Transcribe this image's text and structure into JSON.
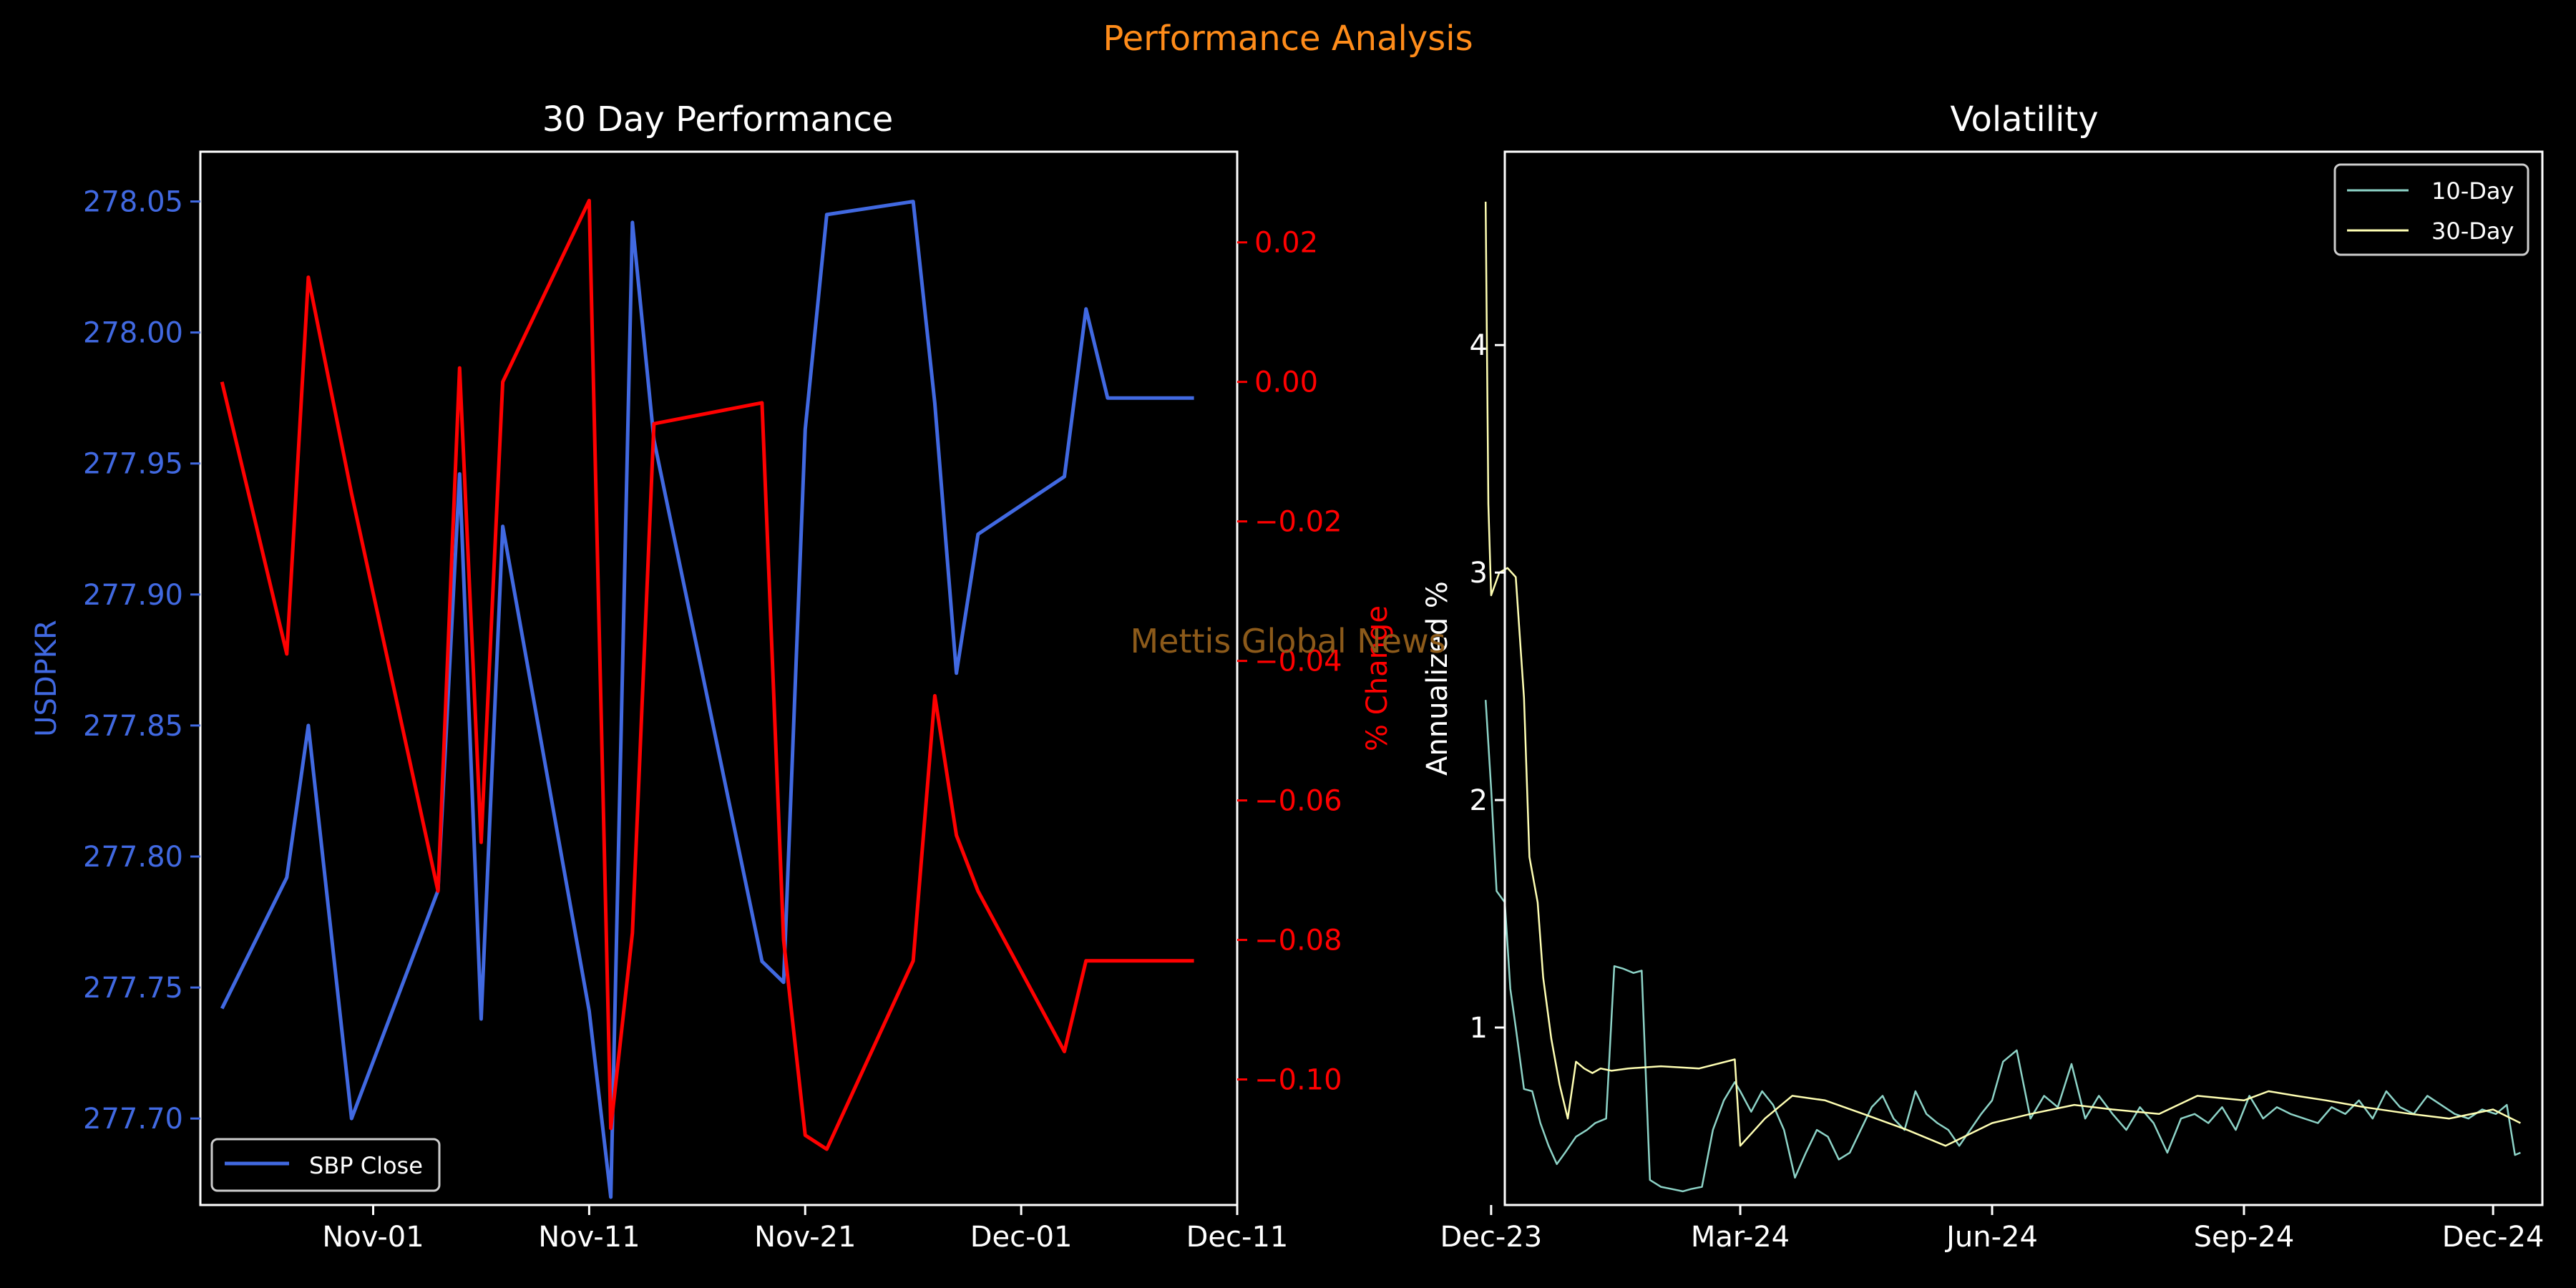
{
  "figure": {
    "suptitle": "Performance Analysis",
    "watermark": "Mettis Global News",
    "colors": {
      "background": "#000000",
      "title": "#ff8c1a",
      "axes": "#ffffff",
      "watermark": "#8c5a1a"
    }
  },
  "chart_data": [
    {
      "type": "line",
      "title": "30 Day Performance",
      "x_type": "date",
      "xlim": [
        "2024-10-24",
        "2024-12-11"
      ],
      "x_ticks": [
        "2024-11-01",
        "2024-11-11",
        "2024-11-21",
        "2024-12-01",
        "2024-12-11"
      ],
      "x_tick_labels": [
        "Nov-01",
        "Nov-11",
        "Nov-21",
        "Dec-01",
        "Dec-11"
      ],
      "ylabel": "USDPKR",
      "ylim": [
        277.667,
        278.069
      ],
      "y_ticks": [
        277.7,
        277.75,
        277.8,
        277.85,
        277.9,
        277.95,
        278.0,
        278.05
      ],
      "y_tick_labels": [
        "277.70",
        "277.75",
        "277.80",
        "277.85",
        "277.90",
        "277.95",
        "278.00",
        "278.05"
      ],
      "ylabel_right": "% Change",
      "ylim_right": [
        -0.118,
        0.033
      ],
      "y_ticks_right": [
        -0.1,
        -0.08,
        -0.06,
        -0.04,
        -0.02,
        0.0,
        0.02
      ],
      "y_tick_labels_right": [
        "−0.10",
        "−0.08",
        "−0.06",
        "−0.04",
        "−0.02",
        "0.00",
        "0.02"
      ],
      "legend": {
        "entries": [
          "SBP Close"
        ],
        "placement": "lower-left"
      },
      "grid": false,
      "series": [
        {
          "name": "SBP Close",
          "axis": "left",
          "color": "#4169e1",
          "x": [
            "2024-10-25",
            "2024-10-28",
            "2024-10-29",
            "2024-10-31",
            "2024-11-04",
            "2024-11-05",
            "2024-11-06",
            "2024-11-07",
            "2024-11-11",
            "2024-11-12",
            "2024-11-13",
            "2024-11-14",
            "2024-11-19",
            "2024-11-20",
            "2024-11-21",
            "2024-11-22",
            "2024-11-26",
            "2024-11-27",
            "2024-11-28",
            "2024-11-29",
            "2024-12-03",
            "2024-12-04",
            "2024-12-05",
            "2024-12-06",
            "2024-12-09"
          ],
          "values": [
            277.742,
            277.792,
            277.85,
            277.7,
            277.787,
            277.946,
            277.738,
            277.926,
            277.741,
            277.67,
            278.042,
            277.959,
            277.76,
            277.752,
            277.963,
            278.045,
            278.05,
            277.973,
            277.87,
            277.923,
            277.945,
            278.009,
            277.975,
            277.975,
            277.975
          ]
        },
        {
          "name": "",
          "axis": "right",
          "color": "#ff0000",
          "x": [
            "2024-10-25",
            "2024-10-28",
            "2024-10-29",
            "2024-10-31",
            "2024-11-04",
            "2024-11-05",
            "2024-11-06",
            "2024-11-07",
            "2024-11-11",
            "2024-11-12",
            "2024-11-13",
            "2024-11-14",
            "2024-11-19",
            "2024-11-20",
            "2024-11-21",
            "2024-11-22",
            "2024-11-26",
            "2024-11-27",
            "2024-11-28",
            "2024-11-29",
            "2024-12-03",
            "2024-12-04",
            "2024-12-05",
            "2024-12-06",
            "2024-12-09"
          ],
          "values": [
            0.0,
            -0.039,
            0.015,
            -0.016,
            -0.073,
            0.002,
            -0.066,
            0.0,
            0.026,
            -0.107,
            -0.079,
            -0.006,
            -0.003,
            -0.08,
            -0.108,
            -0.11,
            -0.083,
            -0.045,
            -0.065,
            -0.073,
            -0.096,
            -0.083,
            -0.083,
            -0.083,
            -0.083
          ]
        }
      ]
    },
    {
      "type": "line",
      "title": "Volatility",
      "x_type": "date",
      "xlim": [
        "2023-12-06",
        "2024-12-19"
      ],
      "x_ticks": [
        "2023-12-01",
        "2024-03-01",
        "2024-06-01",
        "2024-09-01",
        "2024-12-01"
      ],
      "x_tick_labels": [
        "Dec-23",
        "Mar-24",
        "Jun-24",
        "Sep-24",
        "Dec-24"
      ],
      "ylabel": "Annualized %",
      "ylim": [
        0.22,
        4.85
      ],
      "y_ticks": [
        1,
        2,
        3,
        4
      ],
      "y_tick_labels": [
        "1",
        "2",
        "3",
        "4"
      ],
      "legend": {
        "entries": [
          "10-Day",
          "30-Day"
        ],
        "placement": "upper-right"
      },
      "grid": false,
      "series": [
        {
          "name": "10-Day",
          "color": "#8dd3c7",
          "x": [
            "2023-11-29",
            "2023-12-01",
            "2023-12-03",
            "2023-12-06",
            "2023-12-08",
            "2023-12-10",
            "2023-12-13",
            "2023-12-16",
            "2023-12-19",
            "2023-12-22",
            "2023-12-25",
            "2023-12-28",
            "2024-01-01",
            "2024-01-05",
            "2024-01-08",
            "2024-01-12",
            "2024-01-15",
            "2024-01-18",
            "2024-01-22",
            "2024-01-25",
            "2024-01-28",
            "2024-02-01",
            "2024-02-05",
            "2024-02-09",
            "2024-02-12",
            "2024-02-16",
            "2024-02-20",
            "2024-02-24",
            "2024-02-28",
            "2024-03-01",
            "2024-03-05",
            "2024-03-09",
            "2024-03-13",
            "2024-03-17",
            "2024-03-21",
            "2024-03-25",
            "2024-03-29",
            "2024-04-02",
            "2024-04-06",
            "2024-04-10",
            "2024-04-14",
            "2024-04-18",
            "2024-04-22",
            "2024-04-26",
            "2024-04-30",
            "2024-05-04",
            "2024-05-08",
            "2024-05-12",
            "2024-05-16",
            "2024-05-20",
            "2024-05-24",
            "2024-05-28",
            "2024-06-01",
            "2024-06-05",
            "2024-06-10",
            "2024-06-15",
            "2024-06-20",
            "2024-06-25",
            "2024-06-30",
            "2024-07-05",
            "2024-07-10",
            "2024-07-15",
            "2024-07-20",
            "2024-07-25",
            "2024-07-30",
            "2024-08-04",
            "2024-08-09",
            "2024-08-14",
            "2024-08-19",
            "2024-08-24",
            "2024-08-29",
            "2024-09-03",
            "2024-09-08",
            "2024-09-13",
            "2024-09-18",
            "2024-09-23",
            "2024-09-28",
            "2024-10-03",
            "2024-10-08",
            "2024-10-13",
            "2024-10-18",
            "2024-10-23",
            "2024-10-28",
            "2024-11-02",
            "2024-11-07",
            "2024-11-12",
            "2024-11-17",
            "2024-11-22",
            "2024-11-27",
            "2024-12-02",
            "2024-12-06",
            "2024-12-09",
            "2024-12-11"
          ],
          "values": [
            2.44,
            2.05,
            1.6,
            1.55,
            1.17,
            1.0,
            0.73,
            0.72,
            0.58,
            0.48,
            0.4,
            0.45,
            0.52,
            0.55,
            0.58,
            0.6,
            1.27,
            1.26,
            1.24,
            1.25,
            0.33,
            0.3,
            0.29,
            0.28,
            0.29,
            0.3,
            0.55,
            0.68,
            0.76,
            0.72,
            0.63,
            0.72,
            0.66,
            0.55,
            0.34,
            0.45,
            0.55,
            0.52,
            0.42,
            0.45,
            0.55,
            0.65,
            0.7,
            0.6,
            0.55,
            0.72,
            0.62,
            0.58,
            0.55,
            0.48,
            0.55,
            0.62,
            0.68,
            0.85,
            0.9,
            0.6,
            0.7,
            0.65,
            0.84,
            0.6,
            0.7,
            0.62,
            0.55,
            0.65,
            0.58,
            0.45,
            0.6,
            0.62,
            0.58,
            0.65,
            0.55,
            0.7,
            0.6,
            0.65,
            0.62,
            0.6,
            0.58,
            0.65,
            0.62,
            0.68,
            0.6,
            0.72,
            0.65,
            0.62,
            0.7,
            0.66,
            0.62,
            0.6,
            0.64,
            0.62,
            0.66,
            0.44,
            0.45
          ]
        },
        {
          "name": "30-Day",
          "color": "#ffffb3",
          "x": [
            "2023-11-29",
            "2023-11-30",
            "2023-12-01",
            "2023-12-04",
            "2023-12-07",
            "2023-12-10",
            "2023-12-13",
            "2023-12-15",
            "2023-12-18",
            "2023-12-20",
            "2023-12-23",
            "2023-12-26",
            "2023-12-29",
            "2024-01-01",
            "2024-01-04",
            "2024-01-07",
            "2024-01-10",
            "2024-01-14",
            "2024-01-20",
            "2024-02-01",
            "2024-02-15",
            "2024-02-28",
            "2024-03-01",
            "2024-03-10",
            "2024-03-20",
            "2024-04-01",
            "2024-04-15",
            "2024-05-01",
            "2024-05-15",
            "2024-06-01",
            "2024-06-15",
            "2024-07-01",
            "2024-07-15",
            "2024-08-01",
            "2024-08-15",
            "2024-09-01",
            "2024-09-10",
            "2024-09-20",
            "2024-10-01",
            "2024-10-15",
            "2024-11-01",
            "2024-11-15",
            "2024-12-01",
            "2024-12-11"
          ],
          "values": [
            4.63,
            3.3,
            2.9,
            3.0,
            3.02,
            2.98,
            2.45,
            1.75,
            1.55,
            1.22,
            0.95,
            0.75,
            0.6,
            0.85,
            0.82,
            0.8,
            0.82,
            0.81,
            0.82,
            0.83,
            0.82,
            0.86,
            0.48,
            0.6,
            0.7,
            0.68,
            0.62,
            0.55,
            0.48,
            0.58,
            0.62,
            0.66,
            0.64,
            0.62,
            0.7,
            0.68,
            0.72,
            0.7,
            0.68,
            0.65,
            0.62,
            0.6,
            0.64,
            0.58
          ]
        }
      ]
    }
  ]
}
